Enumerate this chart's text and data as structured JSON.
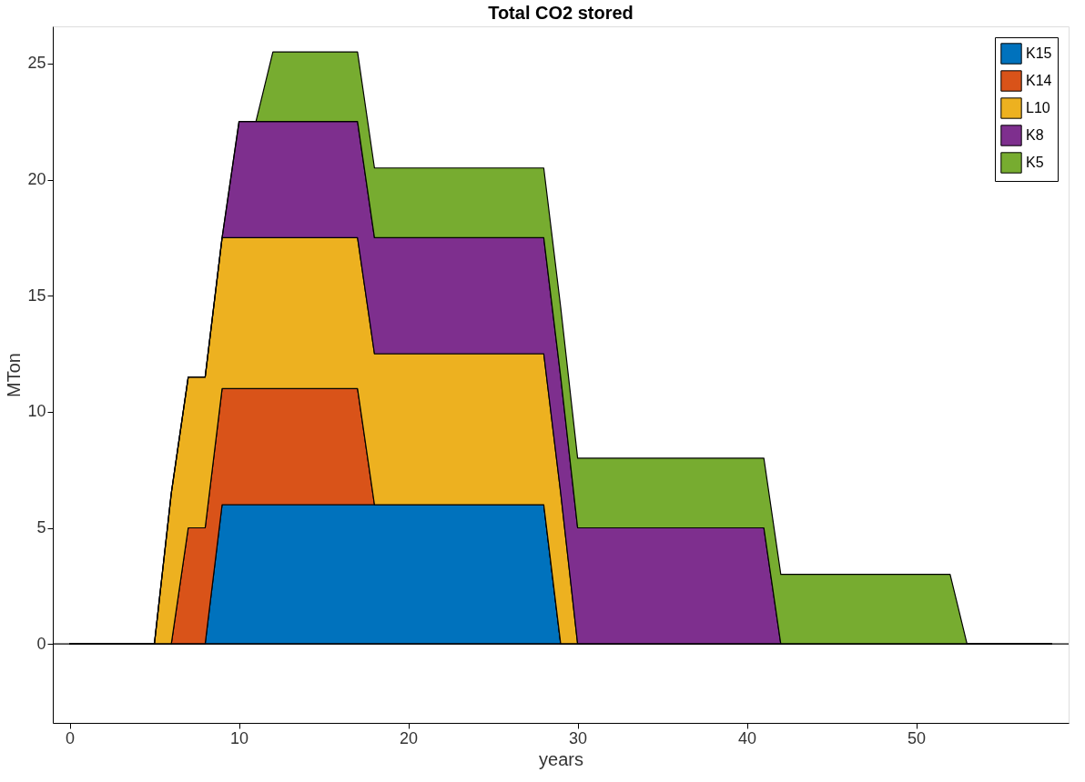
{
  "chart_data": {
    "type": "area",
    "stacked": true,
    "title": "Total CO2 stored",
    "xlabel": "years",
    "ylabel": "MTon",
    "x": [
      0,
      1,
      2,
      3,
      4,
      5,
      6,
      7,
      8,
      9,
      10,
      11,
      12,
      13,
      14,
      15,
      16,
      17,
      18,
      19,
      20,
      21,
      22,
      23,
      24,
      25,
      26,
      27,
      28,
      29,
      30,
      31,
      32,
      33,
      34,
      35,
      36,
      37,
      38,
      39,
      40,
      41,
      42,
      43,
      44,
      45,
      46,
      47,
      48,
      49,
      50,
      51,
      52,
      53,
      54,
      55,
      56,
      57,
      58
    ],
    "series": [
      {
        "name": "K15",
        "color": "#0072bd",
        "values": [
          0,
          0,
          0,
          0,
          0,
          0,
          0,
          0,
          0,
          6,
          6,
          6,
          6,
          6,
          6,
          6,
          6,
          6,
          6,
          6,
          6,
          6,
          6,
          6,
          6,
          6,
          6,
          6,
          6,
          0,
          0,
          0,
          0,
          0,
          0,
          0,
          0,
          0,
          0,
          0,
          0,
          0,
          0,
          0,
          0,
          0,
          0,
          0,
          0,
          0,
          0,
          0,
          0,
          0,
          0,
          0,
          0,
          0,
          0
        ]
      },
      {
        "name": "K14",
        "color": "#d95319",
        "values": [
          0,
          0,
          0,
          0,
          0,
          0,
          0,
          5,
          5,
          5,
          5,
          5,
          5,
          5,
          5,
          5,
          5,
          5,
          0,
          0,
          0,
          0,
          0,
          0,
          0,
          0,
          0,
          0,
          0,
          0,
          0,
          0,
          0,
          0,
          0,
          0,
          0,
          0,
          0,
          0,
          0,
          0,
          0,
          0,
          0,
          0,
          0,
          0,
          0,
          0,
          0,
          0,
          0,
          0,
          0,
          0,
          0,
          0,
          0
        ]
      },
      {
        "name": "L10",
        "color": "#edb120",
        "values": [
          0,
          0,
          0,
          0,
          0,
          0,
          6.5,
          6.5,
          6.5,
          6.5,
          6.5,
          6.5,
          6.5,
          6.5,
          6.5,
          6.5,
          6.5,
          6.5,
          6.5,
          6.5,
          6.5,
          6.5,
          6.5,
          6.5,
          6.5,
          6.5,
          6.5,
          6.5,
          6.5,
          6.5,
          0,
          0,
          0,
          0,
          0,
          0,
          0,
          0,
          0,
          0,
          0,
          0,
          0,
          0,
          0,
          0,
          0,
          0,
          0,
          0,
          0,
          0,
          0,
          0,
          0,
          0,
          0,
          0,
          0
        ]
      },
      {
        "name": "K8",
        "color": "#7e2f8e",
        "values": [
          0,
          0,
          0,
          0,
          0,
          0,
          0,
          0,
          0,
          0,
          5,
          5,
          5,
          5,
          5,
          5,
          5,
          5,
          5,
          5,
          5,
          5,
          5,
          5,
          5,
          5,
          5,
          5,
          5,
          5,
          5,
          5,
          5,
          5,
          5,
          5,
          5,
          5,
          5,
          5,
          5,
          5,
          0,
          0,
          0,
          0,
          0,
          0,
          0,
          0,
          0,
          0,
          0,
          0,
          0,
          0,
          0,
          0,
          0
        ]
      },
      {
        "name": "K5",
        "color": "#77ac30",
        "values": [
          0,
          0,
          0,
          0,
          0,
          0,
          0,
          0,
          0,
          0,
          0,
          0,
          3,
          3,
          3,
          3,
          3,
          3,
          3,
          3,
          3,
          3,
          3,
          3,
          3,
          3,
          3,
          3,
          3,
          3,
          3,
          3,
          3,
          3,
          3,
          3,
          3,
          3,
          3,
          3,
          3,
          3,
          3,
          3,
          3,
          3,
          3,
          3,
          3,
          3,
          3,
          3,
          3,
          0,
          0,
          0,
          0,
          0,
          0
        ]
      }
    ],
    "xlim": [
      -1,
      59
    ],
    "xticks": [
      0,
      10,
      20,
      30,
      40,
      50
    ],
    "ylim": [
      -3.4,
      26.6
    ],
    "yticks": [
      0,
      5,
      10,
      15,
      20,
      25
    ],
    "ref_lines": [
      {
        "axis": "y",
        "value": 0,
        "color": "#000000"
      }
    ],
    "grid": false,
    "legend": "top right"
  }
}
